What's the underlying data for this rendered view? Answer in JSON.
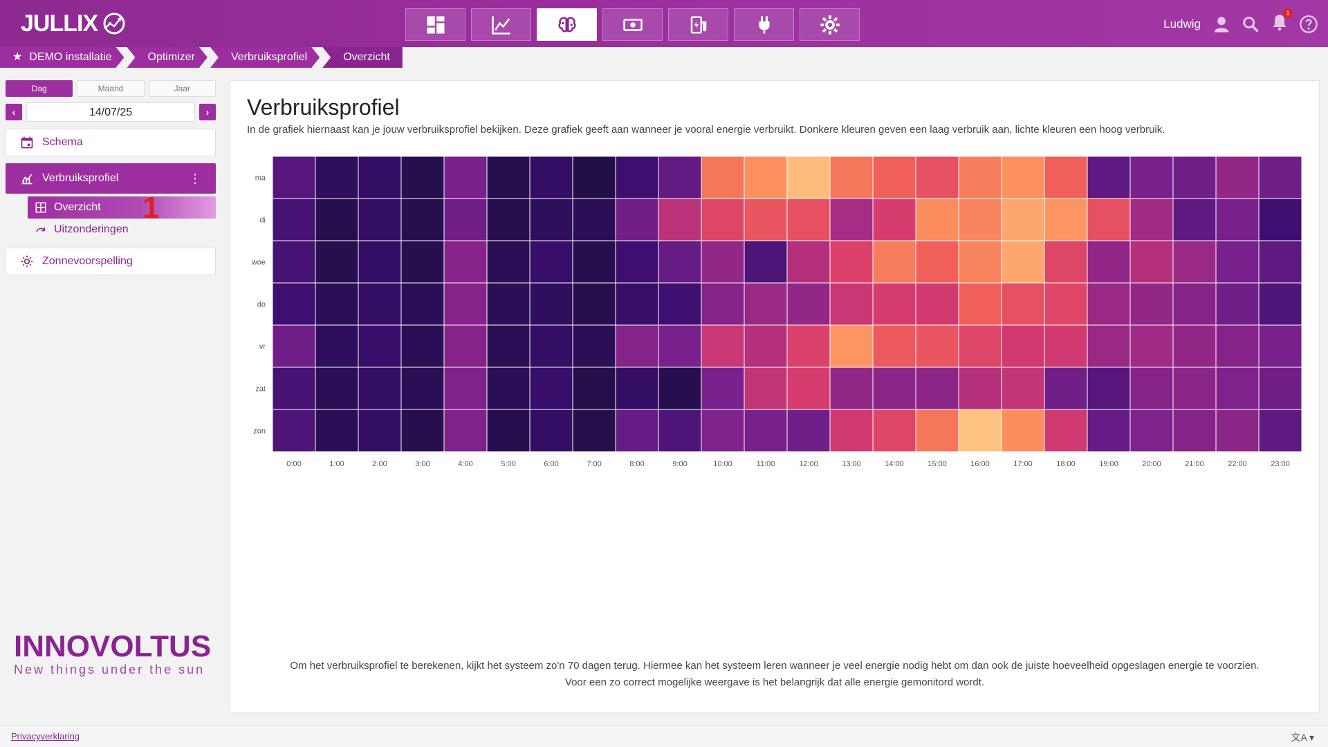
{
  "app": {
    "logo_text": "JULLIX"
  },
  "nav": {
    "buttons": [
      {
        "icon": "dashboard-icon",
        "active": false
      },
      {
        "icon": "chart-line-icon",
        "active": false
      },
      {
        "icon": "brain-icon",
        "active": true
      },
      {
        "icon": "money-icon",
        "active": false
      },
      {
        "icon": "ev-charger-icon",
        "active": false
      },
      {
        "icon": "plug-icon",
        "active": false
      },
      {
        "icon": "settings-icon",
        "active": false
      }
    ]
  },
  "user": {
    "name": "Ludwig",
    "notifications": "1"
  },
  "breadcrumb": [
    "DEMO installatie",
    "Optimizer",
    "Verbruiksprofiel",
    "Overzicht"
  ],
  "sidebar": {
    "period_tabs": [
      "Dag",
      "Maand",
      "Jaar"
    ],
    "active_period": "Dag",
    "date": "14/07/25",
    "menu": {
      "schema": "Schema",
      "verbruiksprofiel": "Verbruiksprofiel",
      "overzicht": "Overzicht",
      "uitzonderingen": "Uitzonderingen",
      "zonnevoorspelling": "Zonnevoorspelling"
    },
    "marker": "1"
  },
  "brand": {
    "name": "INNOVOLTUS",
    "tagline": "New things under the sun"
  },
  "main": {
    "title": "Verbruiksprofiel",
    "description": "In de grafiek hiernaast kan je jouw verbruiksprofiel bekijken. Deze grafiek geeft aan wanneer je vooral energie verbruikt. Donkere kleuren geven een laag verbruik aan, lichte kleuren een hoog verbruik.",
    "footnote_line1": "Om het verbruiksprofiel te berekenen, kijkt het systeem zo'n 70 dagen terug. Hiermee kan het systeem leren wanneer je veel energie nodig hebt om dan ook de juiste hoeveelheid opgeslagen energie te voorzien.",
    "footnote_line2": "Voor een zo correct mogelijke weergave is het belangrijk dat alle energie gemonitord wordt."
  },
  "chart_data": {
    "type": "heatmap",
    "rows": [
      "ma",
      "di",
      "woe",
      "do",
      "vr",
      "zat",
      "zon"
    ],
    "columns": [
      "0:00",
      "1:00",
      "2:00",
      "3:00",
      "4:00",
      "5:00",
      "6:00",
      "7:00",
      "8:00",
      "9:00",
      "10:00",
      "11:00",
      "12:00",
      "13:00",
      "14:00",
      "15:00",
      "16:00",
      "17:00",
      "18:00",
      "19:00",
      "20:00",
      "21:00",
      "22:00",
      "23:00"
    ],
    "values": [
      [
        0.22,
        0.1,
        0.12,
        0.06,
        0.3,
        0.06,
        0.12,
        0.04,
        0.16,
        0.25,
        0.78,
        0.85,
        0.95,
        0.78,
        0.72,
        0.66,
        0.8,
        0.85,
        0.72,
        0.24,
        0.3,
        0.28,
        0.38,
        0.28
      ],
      [
        0.18,
        0.06,
        0.12,
        0.06,
        0.28,
        0.06,
        0.1,
        0.08,
        0.28,
        0.5,
        0.62,
        0.68,
        0.66,
        0.44,
        0.58,
        0.84,
        0.82,
        0.9,
        0.86,
        0.66,
        0.42,
        0.24,
        0.3,
        0.16
      ],
      [
        0.18,
        0.06,
        0.12,
        0.06,
        0.34,
        0.08,
        0.14,
        0.06,
        0.16,
        0.26,
        0.38,
        0.2,
        0.48,
        0.6,
        0.8,
        0.72,
        0.82,
        0.9,
        0.62,
        0.38,
        0.48,
        0.4,
        0.3,
        0.24
      ],
      [
        0.16,
        0.08,
        0.12,
        0.08,
        0.34,
        0.08,
        0.1,
        0.06,
        0.14,
        0.16,
        0.34,
        0.4,
        0.38,
        0.54,
        0.58,
        0.56,
        0.72,
        0.66,
        0.62,
        0.4,
        0.38,
        0.34,
        0.28,
        0.2
      ],
      [
        0.28,
        0.1,
        0.14,
        0.08,
        0.34,
        0.08,
        0.12,
        0.08,
        0.34,
        0.3,
        0.54,
        0.48,
        0.6,
        0.86,
        0.7,
        0.68,
        0.62,
        0.56,
        0.56,
        0.4,
        0.42,
        0.38,
        0.34,
        0.3
      ],
      [
        0.18,
        0.08,
        0.12,
        0.08,
        0.32,
        0.08,
        0.14,
        0.05,
        0.12,
        0.06,
        0.3,
        0.52,
        0.58,
        0.38,
        0.36,
        0.36,
        0.48,
        0.52,
        0.28,
        0.22,
        0.34,
        0.36,
        0.32,
        0.28
      ],
      [
        0.2,
        0.08,
        0.12,
        0.06,
        0.32,
        0.06,
        0.12,
        0.05,
        0.26,
        0.2,
        0.32,
        0.3,
        0.28,
        0.56,
        0.62,
        0.78,
        0.96,
        0.84,
        0.56,
        0.26,
        0.32,
        0.34,
        0.36,
        0.24
      ]
    ]
  }
}
